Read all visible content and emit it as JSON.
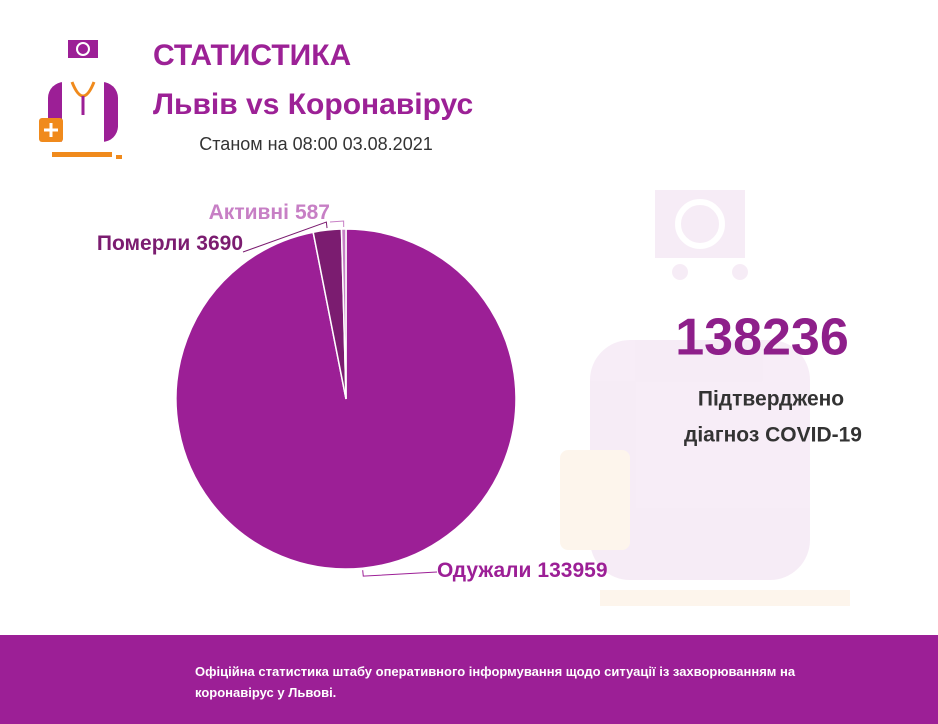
{
  "header": {
    "title": "СТАТИСТИКА",
    "subtitle": "Львів vs Коронавірус",
    "date": "Станом на 08:00 03.08.2021"
  },
  "chart_data": {
    "type": "pie",
    "categories": [
      "Одужали",
      "Померли",
      "Активні"
    ],
    "values": [
      133959,
      3690,
      587
    ],
    "colors": [
      "#9c1f96",
      "#7b1c70",
      "#c77fc5"
    ]
  },
  "summary": {
    "total": "138236",
    "caption": [
      "Підтверджено",
      "діагноз COVID-19"
    ]
  },
  "footer": {
    "text": "Офіційна статистика штабу оперативного інформування щодо ситуації із захворюванням на коронавірус у Львові."
  }
}
